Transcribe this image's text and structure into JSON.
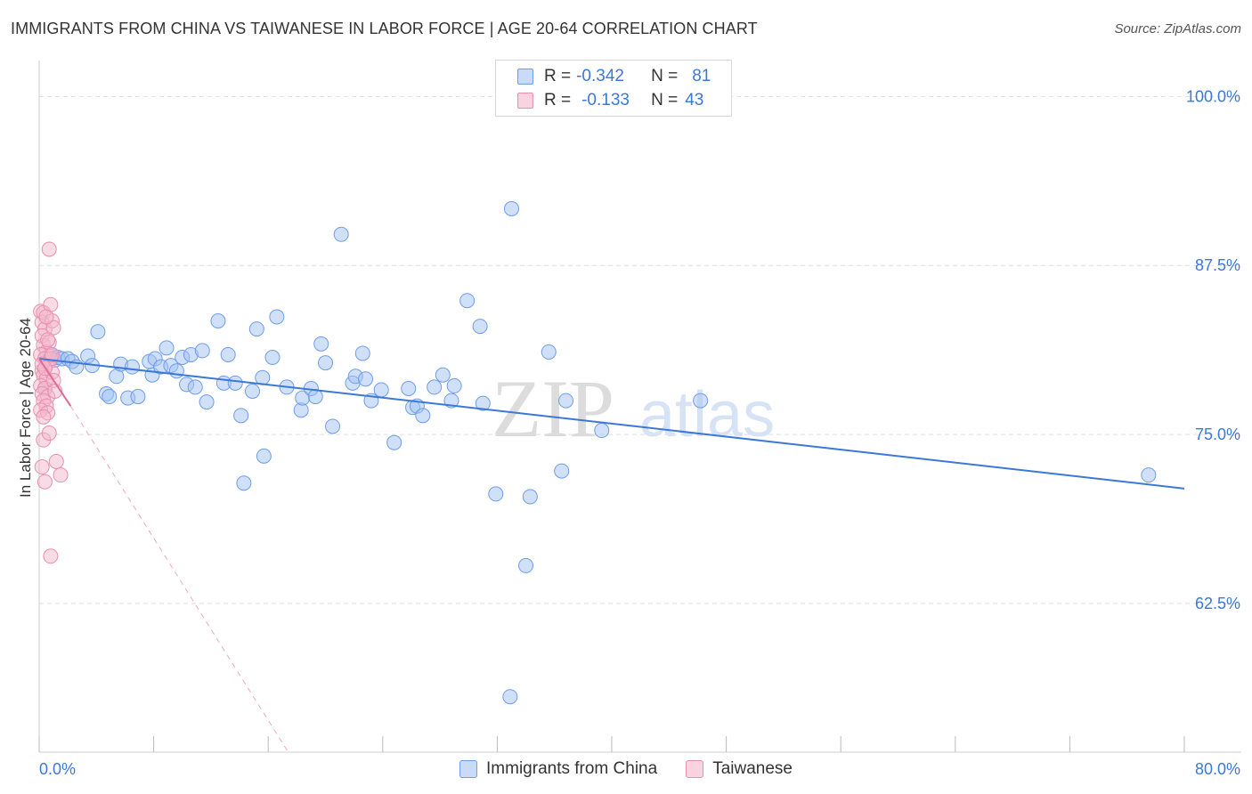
{
  "title": "IMMIGRANTS FROM CHINA VS TAIWANESE IN LABOR FORCE | AGE 20-64 CORRELATION CHART",
  "source": "Source: ZipAtlas.com",
  "watermark": {
    "zip": "ZIP",
    "atlas": "atlas"
  },
  "legend": {
    "rows": [
      {
        "r_label": "R =",
        "r_value": "-0.342",
        "n_label": "N =",
        "n_value": "81",
        "color": "#a4c2f4",
        "border": "#6d9eeb"
      },
      {
        "r_label": "R =",
        "r_value": "-0.133",
        "n_label": "N =",
        "n_value": "43",
        "color": "#f4b8cc",
        "border": "#e98fae"
      }
    ]
  },
  "chart_data": {
    "type": "scatter",
    "title": "IMMIGRANTS FROM CHINA VS TAIWANESE IN LABOR FORCE | AGE 20-64 CORRELATION CHART",
    "xlabel": "",
    "ylabel": "In Labor Force | Age 20-64",
    "xlim": [
      0,
      80
    ],
    "ylim": [
      51.5,
      102
    ],
    "x_tick_labels": [
      "0.0%",
      "80.0%"
    ],
    "y_ticks": [
      62.5,
      75.0,
      87.5,
      100.0
    ],
    "y_tick_labels": [
      "62.5%",
      "75.0%",
      "87.5%",
      "100.0%"
    ],
    "grid": true,
    "legend_position": "top-center",
    "series": [
      {
        "name": "Immigrants from China",
        "color": "#6d9eeb",
        "fill": "#a4c2f4",
        "trend": {
          "x": [
            0,
            80
          ],
          "y": [
            80.6,
            71.0
          ],
          "color": "#3c78d8",
          "dashed": false
        },
        "points": [
          [
            0.4,
            78.4
          ],
          [
            0.8,
            80.9
          ],
          [
            1.1,
            80.5
          ],
          [
            1.3,
            80.7
          ],
          [
            1.6,
            80.6
          ],
          [
            2.0,
            80.6
          ],
          [
            2.3,
            80.4
          ],
          [
            2.6,
            80.0
          ],
          [
            3.4,
            80.8
          ],
          [
            3.7,
            80.1
          ],
          [
            4.1,
            82.6
          ],
          [
            4.7,
            78.0
          ],
          [
            4.9,
            77.8
          ],
          [
            5.4,
            79.3
          ],
          [
            5.7,
            80.2
          ],
          [
            6.2,
            77.7
          ],
          [
            6.5,
            80.0
          ],
          [
            6.9,
            77.8
          ],
          [
            7.7,
            80.4
          ],
          [
            7.9,
            79.4
          ],
          [
            8.1,
            80.6
          ],
          [
            8.5,
            80.0
          ],
          [
            8.9,
            81.4
          ],
          [
            9.2,
            80.1
          ],
          [
            9.6,
            79.7
          ],
          [
            10.0,
            80.7
          ],
          [
            10.3,
            78.7
          ],
          [
            10.6,
            80.9
          ],
          [
            10.9,
            78.5
          ],
          [
            11.4,
            81.2
          ],
          [
            11.7,
            77.4
          ],
          [
            12.5,
            83.4
          ],
          [
            12.9,
            78.8
          ],
          [
            13.2,
            80.9
          ],
          [
            13.7,
            78.8
          ],
          [
            14.1,
            76.4
          ],
          [
            14.3,
            71.4
          ],
          [
            14.9,
            78.2
          ],
          [
            15.2,
            82.8
          ],
          [
            15.6,
            79.2
          ],
          [
            15.7,
            73.4
          ],
          [
            16.3,
            80.7
          ],
          [
            16.6,
            83.7
          ],
          [
            17.3,
            78.5
          ],
          [
            18.3,
            76.8
          ],
          [
            18.4,
            77.7
          ],
          [
            19.0,
            78.4
          ],
          [
            19.3,
            77.8
          ],
          [
            19.7,
            81.7
          ],
          [
            20.0,
            80.3
          ],
          [
            20.5,
            75.6
          ],
          [
            21.1,
            89.8
          ],
          [
            21.9,
            78.8
          ],
          [
            22.1,
            79.3
          ],
          [
            22.6,
            81.0
          ],
          [
            22.8,
            79.1
          ],
          [
            23.2,
            77.5
          ],
          [
            23.9,
            78.3
          ],
          [
            24.8,
            74.4
          ],
          [
            25.8,
            78.4
          ],
          [
            26.1,
            77.0
          ],
          [
            26.4,
            77.1
          ],
          [
            26.8,
            76.4
          ],
          [
            27.6,
            78.5
          ],
          [
            28.2,
            79.4
          ],
          [
            28.8,
            77.5
          ],
          [
            29.0,
            78.6
          ],
          [
            29.9,
            84.9
          ],
          [
            30.8,
            83.0
          ],
          [
            31.0,
            77.3
          ],
          [
            31.9,
            70.6
          ],
          [
            32.9,
            55.6
          ],
          [
            33.0,
            91.7
          ],
          [
            34.0,
            65.3
          ],
          [
            34.3,
            70.4
          ],
          [
            35.6,
            81.1
          ],
          [
            36.5,
            72.3
          ],
          [
            36.8,
            77.5
          ],
          [
            39.3,
            75.3
          ],
          [
            46.2,
            77.5
          ],
          [
            77.5,
            72.0
          ]
        ]
      },
      {
        "name": "Taiwanese",
        "color": "#e98fae",
        "fill": "#f4b8cc",
        "trend": {
          "x": [
            0,
            2.2
          ],
          "y": [
            80.6,
            77.1
          ],
          "color": "#e06b96",
          "dashed": false
        },
        "trend_extension": {
          "x": [
            2.2,
            17.4
          ],
          "y": [
            77.1,
            51.5
          ],
          "color": "#eeaac0",
          "dashed": true
        },
        "points": [
          [
            0.1,
            84.1
          ],
          [
            0.2,
            83.3
          ],
          [
            0.3,
            84.0
          ],
          [
            0.4,
            82.8
          ],
          [
            0.2,
            82.3
          ],
          [
            0.3,
            81.6
          ],
          [
            0.5,
            81.1
          ],
          [
            0.1,
            80.9
          ],
          [
            0.4,
            80.6
          ],
          [
            0.6,
            80.3
          ],
          [
            0.2,
            79.7
          ],
          [
            0.3,
            79.4
          ],
          [
            0.5,
            79.1
          ],
          [
            0.1,
            78.6
          ],
          [
            0.4,
            78.4
          ],
          [
            0.2,
            78.0
          ],
          [
            0.6,
            77.8
          ],
          [
            0.3,
            77.5
          ],
          [
            0.5,
            77.1
          ],
          [
            0.1,
            76.8
          ],
          [
            0.3,
            74.6
          ],
          [
            0.2,
            72.6
          ],
          [
            0.4,
            71.5
          ],
          [
            0.7,
            88.7
          ],
          [
            0.8,
            84.6
          ],
          [
            0.9,
            83.4
          ],
          [
            1.0,
            82.9
          ],
          [
            0.7,
            81.8
          ],
          [
            0.8,
            80.6
          ],
          [
            0.9,
            79.6
          ],
          [
            1.0,
            79.0
          ],
          [
            1.1,
            78.2
          ],
          [
            0.6,
            76.6
          ],
          [
            1.2,
            73.0
          ],
          [
            1.5,
            72.0
          ],
          [
            0.8,
            66.0
          ],
          [
            0.2,
            80.2
          ],
          [
            0.5,
            83.7
          ],
          [
            0.3,
            76.3
          ],
          [
            0.7,
            75.1
          ],
          [
            0.9,
            80.9
          ],
          [
            0.6,
            82.0
          ],
          [
            0.4,
            79.9
          ]
        ]
      }
    ]
  },
  "bottom_legend": {
    "items": [
      {
        "label": "Immigrants from China",
        "color": "#a4c2f4",
        "border": "#6d9eeb"
      },
      {
        "label": "Taiwanese",
        "color": "#f4b8cc",
        "border": "#e98fae"
      }
    ]
  }
}
